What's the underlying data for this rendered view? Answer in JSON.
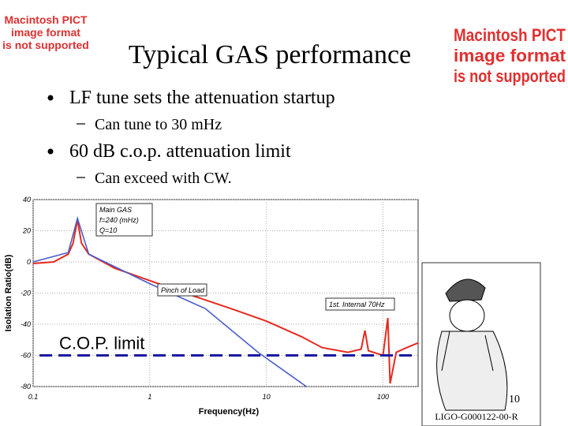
{
  "slide": {
    "title": "Typical  GAS performance",
    "bullets": [
      {
        "text": "LF tune sets the attenuation startup",
        "sub": "Can tune to 30 mHz"
      },
      {
        "text": "60 dB c.o.p. attenuation limit",
        "sub": "Can exceed with CW."
      }
    ],
    "page_number": "10",
    "footer": "LIGO-G000122-00-R",
    "placeholder_left": [
      "Macintosh PICT",
      "image format",
      "is not supported"
    ],
    "placeholder_right": [
      "Macintosh PICT",
      "image format",
      "is not supported"
    ]
  },
  "chart_data": {
    "type": "line",
    "x_label": "Frequency(Hz)",
    "y_label": "Isolation Ratio(dB)",
    "log_x": true,
    "grid": true,
    "xlim": [
      0.1,
      200
    ],
    "ylim": [
      -80,
      40
    ],
    "xticks": [
      0.1,
      1,
      10,
      100
    ],
    "yticks": [
      40,
      20,
      0,
      -20,
      -40,
      -60,
      -80
    ],
    "series": [
      {
        "color": "#e62a1e",
        "x": [
          0.1,
          0.15,
          0.2,
          0.22,
          0.24,
          0.26,
          0.3,
          0.5,
          1,
          2,
          5,
          10,
          20,
          30,
          50,
          65,
          70,
          75,
          100,
          110,
          115,
          130,
          160,
          200
        ],
        "values": [
          -1,
          0,
          5,
          12,
          27,
          12,
          5,
          -4,
          -12,
          -20,
          -30,
          -38,
          -48,
          -55,
          -58,
          -56,
          -44,
          -57,
          -60,
          -36,
          -78,
          -58,
          -55,
          -52
        ]
      },
      {
        "color": "#4a5ccc",
        "x": [
          0.1,
          0.2,
          0.24,
          0.3,
          1,
          3,
          8.5,
          22
        ],
        "values": [
          0,
          6,
          28,
          5,
          -14,
          -30,
          -58,
          -80
        ]
      }
    ],
    "limit": {
      "value": -60,
      "label": "C.O.P. limit",
      "color": "#1a1aa0"
    },
    "annotations": [
      {
        "lines": [
          "Main GAS",
          "f=240 (mHz)",
          "Q=10"
        ]
      },
      {
        "lines": [
          "Pinch of Load"
        ]
      },
      {
        "lines": [
          "1st. Internal 70Hz"
        ]
      }
    ]
  }
}
